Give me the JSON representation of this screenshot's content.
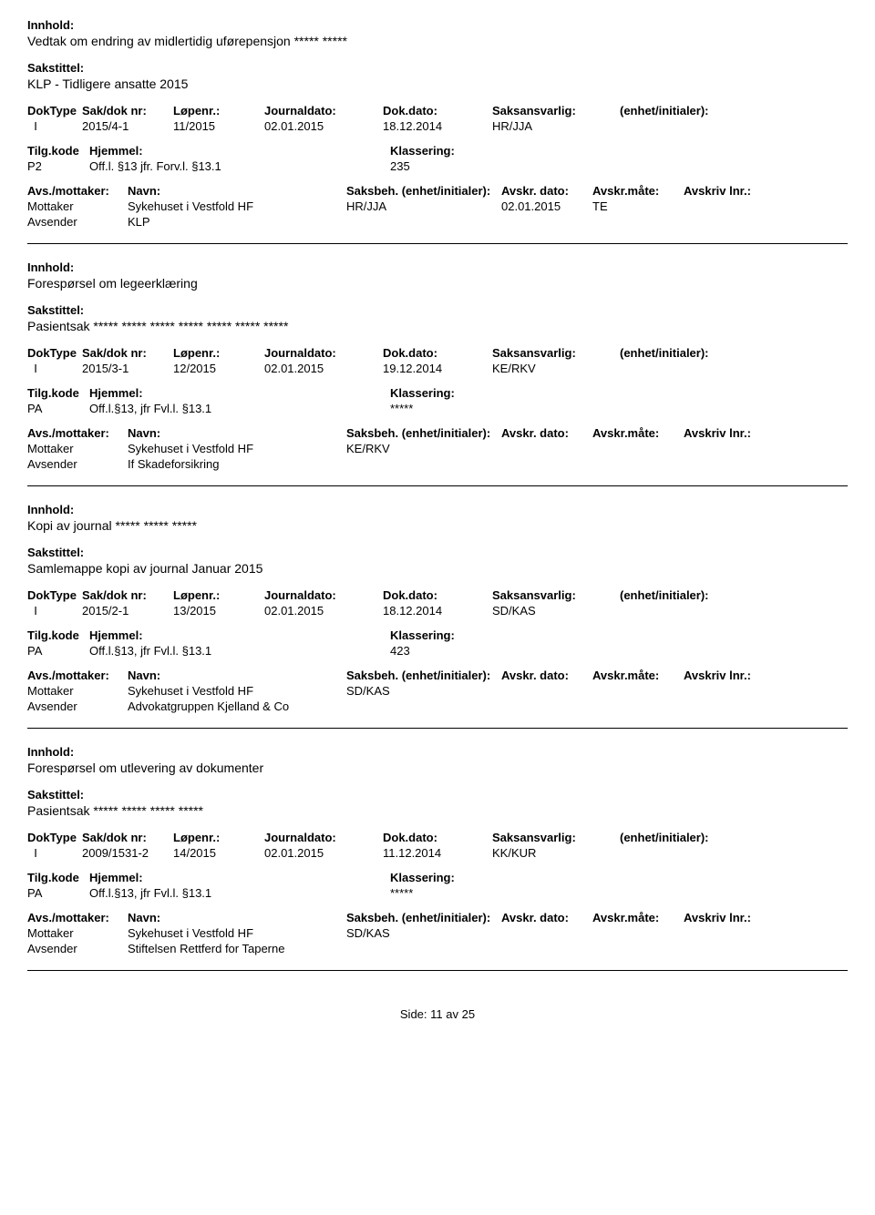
{
  "labels": {
    "innhold": "Innhold:",
    "sakstittel": "Sakstittel:",
    "doktype": "DokType",
    "sakdok": "Sak/dok nr:",
    "lopenr": "Løpenr.:",
    "journaldato": "Journaldato:",
    "dokdato": "Dok.dato:",
    "saksansvarlig": "Saksansvarlig:",
    "enhet": "(enhet/initialer):",
    "tilgkode": "Tilg.kode",
    "hjemmel": "Hjemmel:",
    "klassering": "Klassering:",
    "avsmottaker": "Avs./mottaker:",
    "navn": "Navn:",
    "saksbeh": "Saksbeh.",
    "saksbeh_enhet": "(enhet/initialer):",
    "avskr_dato": "Avskr. dato:",
    "avskr_mate": "Avskr.måte:",
    "avskriv_lnr": "Avskriv lnr.:",
    "mottaker": "Mottaker",
    "avsender": "Avsender",
    "side": "Side:",
    "av": "av"
  },
  "footer": {
    "page": "11",
    "total": "25"
  },
  "records": [
    {
      "innhold": "Vedtak om endring av midlertidig uførepensjon ***** *****",
      "sakstittel": "KLP - Tidligere ansatte 2015",
      "doktype": "I",
      "sakdok": "2015/4-1",
      "lopenr": "11/2015",
      "journaldato": "02.01.2015",
      "dokdato": "18.12.2014",
      "saksansvarlig": "HR/JJA",
      "tilgkode": "P2",
      "hjemmel": "Off.l. §13  jfr. Forv.l. §13.1",
      "klassering": "235",
      "mottaker_navn": "Sykehuset i Vestfold HF",
      "mottaker_saksbeh": "HR/JJA",
      "mottaker_avskr_dato": "02.01.2015",
      "mottaker_avskr_mate": "TE",
      "avsender_navn": "KLP"
    },
    {
      "innhold": "Forespørsel om legeerklæring",
      "sakstittel": "Pasientsak ***** ***** ***** ***** ***** ***** *****",
      "doktype": "I",
      "sakdok": "2015/3-1",
      "lopenr": "12/2015",
      "journaldato": "02.01.2015",
      "dokdato": "19.12.2014",
      "saksansvarlig": "KE/RKV",
      "tilgkode": "PA",
      "hjemmel": "Off.l.§13, jfr Fvl.l. §13.1",
      "klassering": "*****",
      "mottaker_navn": "Sykehuset i Vestfold HF",
      "mottaker_saksbeh": "KE/RKV",
      "mottaker_avskr_dato": "",
      "mottaker_avskr_mate": "",
      "avsender_navn": "If Skadeforsikring"
    },
    {
      "innhold": "Kopi av journal ***** ***** *****",
      "sakstittel": "Samlemappe kopi av journal Januar 2015",
      "doktype": "I",
      "sakdok": "2015/2-1",
      "lopenr": "13/2015",
      "journaldato": "02.01.2015",
      "dokdato": "18.12.2014",
      "saksansvarlig": "SD/KAS",
      "tilgkode": "PA",
      "hjemmel": "Off.l.§13, jfr Fvl.l. §13.1",
      "klassering": "423",
      "mottaker_navn": "Sykehuset i Vestfold HF",
      "mottaker_saksbeh": "SD/KAS",
      "mottaker_avskr_dato": "",
      "mottaker_avskr_mate": "",
      "avsender_navn": "Advokatgruppen Kjelland & Co"
    },
    {
      "innhold": "Forespørsel om utlevering av dokumenter",
      "sakstittel": "Pasientsak ***** ***** ***** *****",
      "doktype": "I",
      "sakdok": "2009/1531-2",
      "lopenr": "14/2015",
      "journaldato": "02.01.2015",
      "dokdato": "11.12.2014",
      "saksansvarlig": "KK/KUR",
      "tilgkode": "PA",
      "hjemmel": "Off.l.§13, jfr Fvl.l. §13.1",
      "klassering": "*****",
      "mottaker_navn": "Sykehuset i Vestfold HF",
      "mottaker_saksbeh": "SD/KAS",
      "mottaker_avskr_dato": "",
      "mottaker_avskr_mate": "",
      "avsender_navn": "Stiftelsen Rettferd for Taperne"
    }
  ]
}
